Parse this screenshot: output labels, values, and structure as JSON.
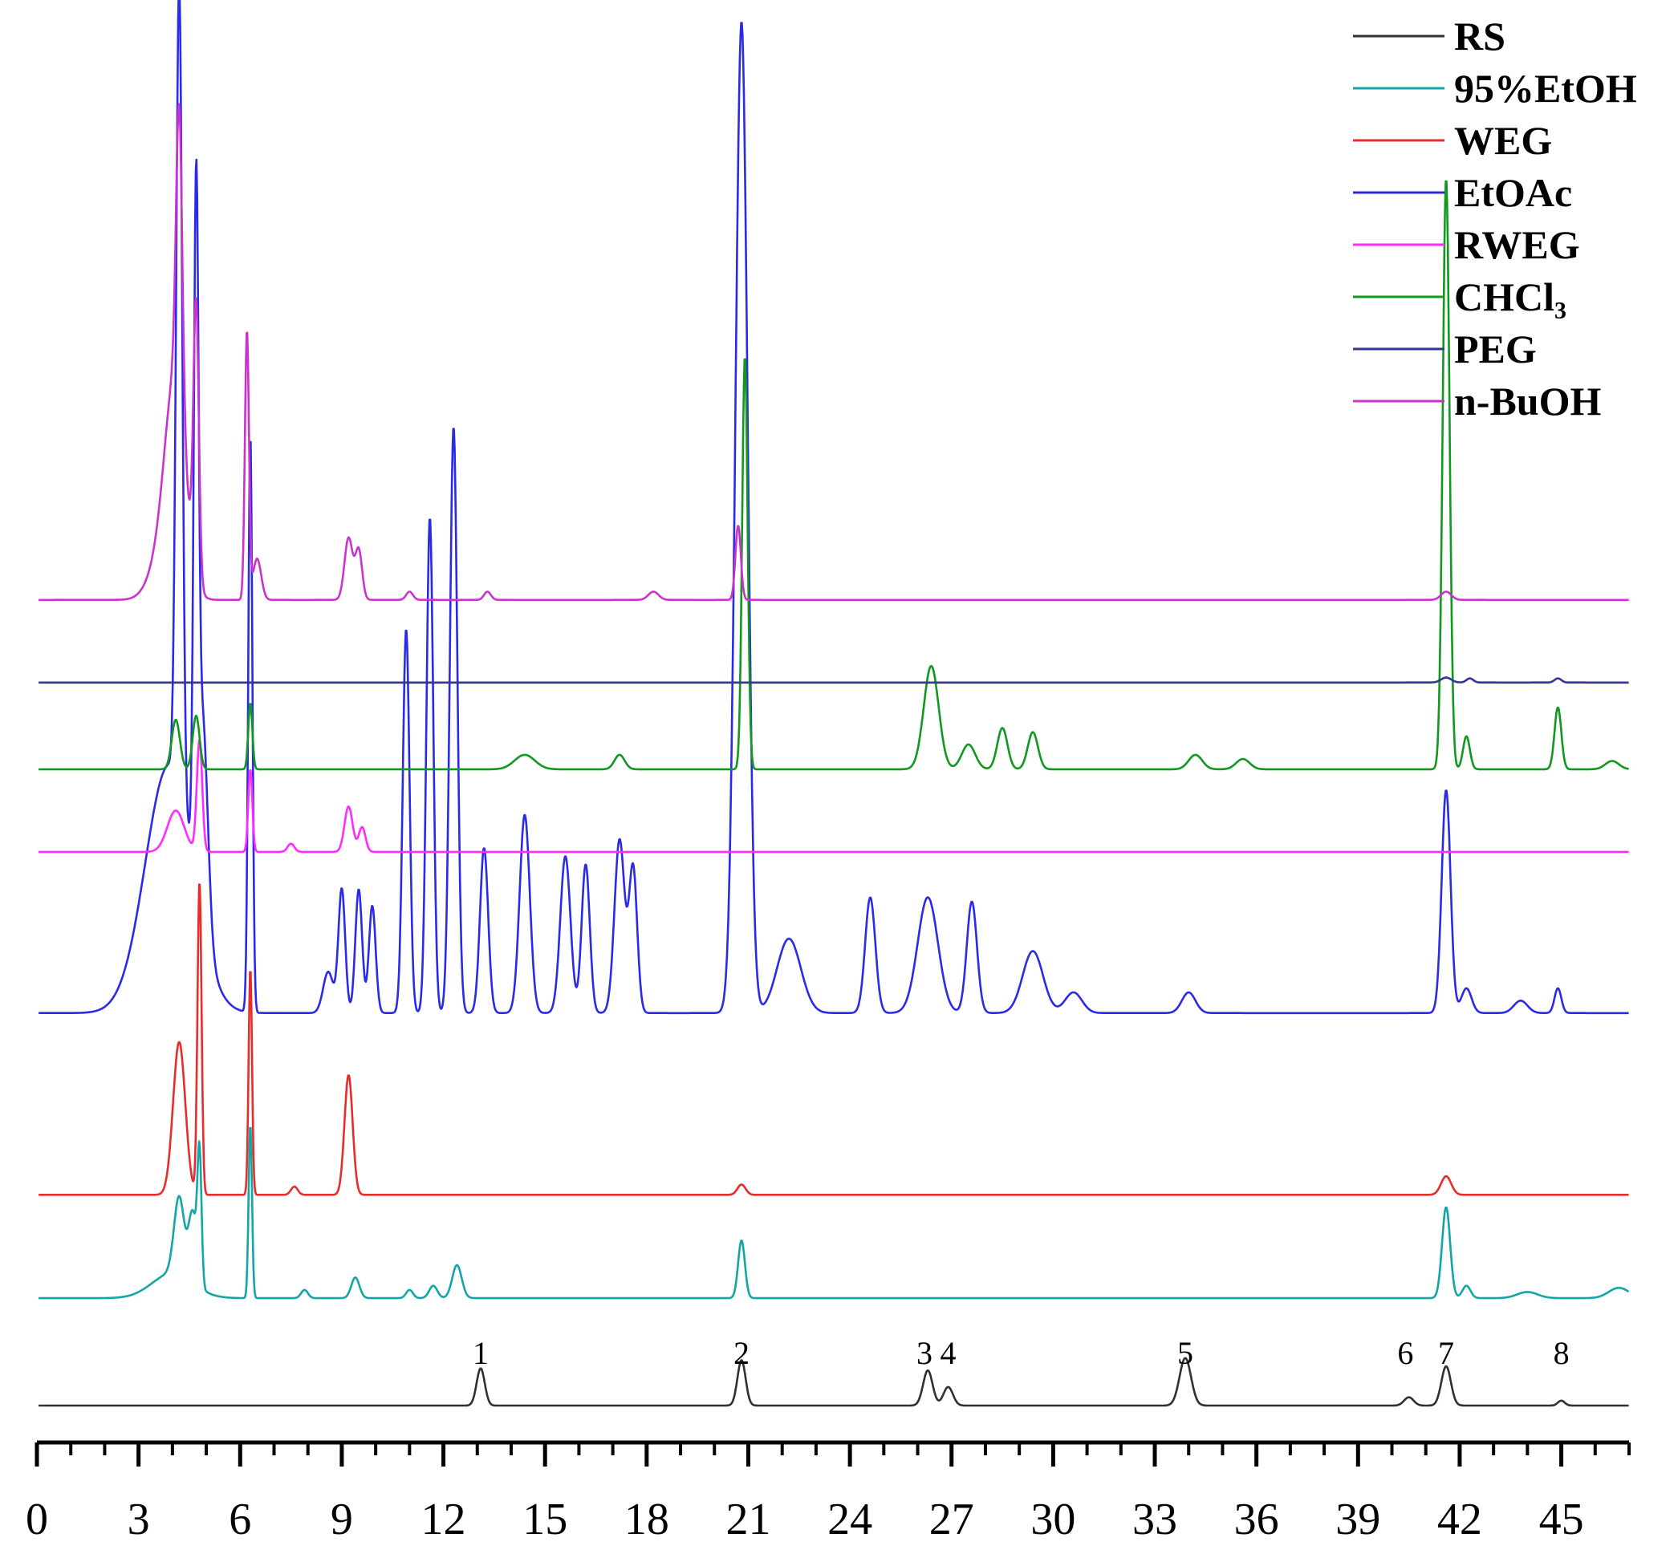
{
  "chart_data": {
    "type": "line",
    "title": "",
    "xlabel": "",
    "ylabel": "",
    "xlim": [
      0,
      47
    ],
    "grid": false,
    "legend_position": "top-right",
    "x_ticks": [
      0,
      3,
      6,
      9,
      12,
      15,
      18,
      21,
      24,
      27,
      30,
      33,
      36,
      39,
      42,
      45
    ],
    "series": [
      {
        "name": "RS",
        "color": "#303030",
        "baseline": 0,
        "peaks": [
          {
            "x": 13.1,
            "h": 0.9,
            "w": 0.12
          },
          {
            "x": 20.8,
            "h": 1.1,
            "w": 0.12
          },
          {
            "x": 26.3,
            "h": 0.85,
            "w": 0.14
          },
          {
            "x": 26.9,
            "h": 0.45,
            "w": 0.14
          },
          {
            "x": 33.9,
            "h": 1.15,
            "w": 0.17
          },
          {
            "x": 40.5,
            "h": 0.2,
            "w": 0.14
          },
          {
            "x": 41.6,
            "h": 0.95,
            "w": 0.14
          },
          {
            "x": 45.0,
            "h": 0.12,
            "w": 0.1
          }
        ]
      },
      {
        "name": "95%EtOH",
        "color": "#13a6a6",
        "baseline": 2.6,
        "peaks": [
          {
            "x": 4.0,
            "h": 0.6,
            "w": 0.6
          },
          {
            "x": 4.2,
            "h": 1.9,
            "w": 0.15
          },
          {
            "x": 4.6,
            "h": 1.7,
            "w": 0.12
          },
          {
            "x": 4.8,
            "h": 3.1,
            "w": 0.06
          },
          {
            "x": 6.3,
            "h": 4.2,
            "w": 0.05
          },
          {
            "x": 7.9,
            "h": 0.2,
            "w": 0.1
          },
          {
            "x": 9.4,
            "h": 0.5,
            "w": 0.12
          },
          {
            "x": 11.0,
            "h": 0.2,
            "w": 0.1
          },
          {
            "x": 11.7,
            "h": 0.3,
            "w": 0.12
          },
          {
            "x": 12.4,
            "h": 0.8,
            "w": 0.14
          },
          {
            "x": 20.8,
            "h": 1.4,
            "w": 0.1
          },
          {
            "x": 41.6,
            "h": 2.2,
            "w": 0.12
          },
          {
            "x": 42.2,
            "h": 0.3,
            "w": 0.12
          },
          {
            "x": 44.0,
            "h": 0.15,
            "w": 0.3
          },
          {
            "x": 46.7,
            "h": 0.25,
            "w": 0.3
          }
        ]
      },
      {
        "name": "WEG",
        "color": "#e82c2c",
        "baseline": 5.1,
        "peaks": [
          {
            "x": 4.2,
            "h": 3.7,
            "w": 0.18
          },
          {
            "x": 4.8,
            "h": 7.6,
            "w": 0.06
          },
          {
            "x": 6.3,
            "h": 5.5,
            "w": 0.05
          },
          {
            "x": 7.6,
            "h": 0.2,
            "w": 0.1
          },
          {
            "x": 9.2,
            "h": 2.9,
            "w": 0.12
          },
          {
            "x": 20.8,
            "h": 0.25,
            "w": 0.12
          },
          {
            "x": 41.6,
            "h": 0.45,
            "w": 0.15
          }
        ]
      },
      {
        "name": "EtOAc",
        "color": "#2a2ae8",
        "baseline": 9.5,
        "peaks": [
          {
            "x": 3.9,
            "h": 6.0,
            "w": 0.7
          },
          {
            "x": 4.2,
            "h": 19.5,
            "w": 0.09
          },
          {
            "x": 4.7,
            "h": 15.5,
            "w": 0.07
          },
          {
            "x": 4.9,
            "h": 5.0,
            "w": 0.15
          },
          {
            "x": 6.3,
            "h": 14.0,
            "w": 0.06
          },
          {
            "x": 8.6,
            "h": 1.0,
            "w": 0.15
          },
          {
            "x": 9.0,
            "h": 3.0,
            "w": 0.1
          },
          {
            "x": 9.5,
            "h": 3.0,
            "w": 0.1
          },
          {
            "x": 9.9,
            "h": 2.6,
            "w": 0.1
          },
          {
            "x": 10.9,
            "h": 9.3,
            "w": 0.1
          },
          {
            "x": 11.6,
            "h": 12.0,
            "w": 0.1
          },
          {
            "x": 12.3,
            "h": 14.2,
            "w": 0.11
          },
          {
            "x": 13.2,
            "h": 4.0,
            "w": 0.12
          },
          {
            "x": 14.4,
            "h": 4.8,
            "w": 0.15
          },
          {
            "x": 15.6,
            "h": 3.8,
            "w": 0.15
          },
          {
            "x": 16.2,
            "h": 3.6,
            "w": 0.12
          },
          {
            "x": 17.2,
            "h": 4.2,
            "w": 0.15
          },
          {
            "x": 17.6,
            "h": 3.5,
            "w": 0.12
          },
          {
            "x": 20.8,
            "h": 24.0,
            "w": 0.18
          },
          {
            "x": 22.2,
            "h": 1.8,
            "w": 0.35
          },
          {
            "x": 24.6,
            "h": 2.8,
            "w": 0.15
          },
          {
            "x": 26.3,
            "h": 2.8,
            "w": 0.3
          },
          {
            "x": 27.6,
            "h": 2.7,
            "w": 0.15
          },
          {
            "x": 29.4,
            "h": 1.5,
            "w": 0.3
          },
          {
            "x": 30.6,
            "h": 0.5,
            "w": 0.25
          },
          {
            "x": 34.0,
            "h": 0.5,
            "w": 0.2
          },
          {
            "x": 41.6,
            "h": 5.4,
            "w": 0.13
          },
          {
            "x": 42.2,
            "h": 0.6,
            "w": 0.15
          },
          {
            "x": 43.8,
            "h": 0.3,
            "w": 0.2
          },
          {
            "x": 44.9,
            "h": 0.6,
            "w": 0.1
          }
        ]
      },
      {
        "name": "RWEG",
        "color": "#ff2bff",
        "baseline": 13.4,
        "peaks": [
          {
            "x": 4.1,
            "h": 1.0,
            "w": 0.25
          },
          {
            "x": 4.8,
            "h": 2.7,
            "w": 0.08
          },
          {
            "x": 6.3,
            "h": 2.0,
            "w": 0.06
          },
          {
            "x": 7.5,
            "h": 0.2,
            "w": 0.1
          },
          {
            "x": 9.2,
            "h": 1.1,
            "w": 0.12
          },
          {
            "x": 9.6,
            "h": 0.6,
            "w": 0.1
          }
        ]
      },
      {
        "name": "CHCl₃",
        "color": "#11981f",
        "baseline": 15.4,
        "peaks": [
          {
            "x": 4.1,
            "h": 1.2,
            "w": 0.12
          },
          {
            "x": 4.7,
            "h": 1.3,
            "w": 0.1
          },
          {
            "x": 6.3,
            "h": 1.6,
            "w": 0.06
          },
          {
            "x": 14.4,
            "h": 0.35,
            "w": 0.3
          },
          {
            "x": 17.2,
            "h": 0.35,
            "w": 0.15
          },
          {
            "x": 20.9,
            "h": 10.0,
            "w": 0.08
          },
          {
            "x": 26.4,
            "h": 2.5,
            "w": 0.22
          },
          {
            "x": 27.5,
            "h": 0.6,
            "w": 0.2
          },
          {
            "x": 28.5,
            "h": 1.0,
            "w": 0.15
          },
          {
            "x": 29.4,
            "h": 0.9,
            "w": 0.15
          },
          {
            "x": 34.2,
            "h": 0.35,
            "w": 0.2
          },
          {
            "x": 35.6,
            "h": 0.25,
            "w": 0.2
          },
          {
            "x": 41.6,
            "h": 14.3,
            "w": 0.1
          },
          {
            "x": 42.2,
            "h": 0.8,
            "w": 0.1
          },
          {
            "x": 44.9,
            "h": 1.5,
            "w": 0.1
          },
          {
            "x": 46.5,
            "h": 0.2,
            "w": 0.2
          }
        ]
      },
      {
        "name": "PEG",
        "color": "#353597",
        "baseline": 17.5,
        "peaks": [
          {
            "x": 41.6,
            "h": 0.12,
            "w": 0.15
          },
          {
            "x": 42.3,
            "h": 0.1,
            "w": 0.1
          },
          {
            "x": 44.9,
            "h": 0.1,
            "w": 0.1
          }
        ]
      },
      {
        "name": "n-BuOH",
        "color": "#cc33cc",
        "baseline": 19.5,
        "peaks": [
          {
            "x": 3.8,
            "h": 1.2,
            "w": 0.4
          },
          {
            "x": 4.1,
            "h": 4.5,
            "w": 0.3
          },
          {
            "x": 4.2,
            "h": 7.0,
            "w": 0.09
          },
          {
            "x": 4.7,
            "h": 6.6,
            "w": 0.08
          },
          {
            "x": 6.2,
            "h": 6.5,
            "w": 0.06
          },
          {
            "x": 6.5,
            "h": 1.0,
            "w": 0.12
          },
          {
            "x": 9.2,
            "h": 1.5,
            "w": 0.12
          },
          {
            "x": 9.5,
            "h": 1.2,
            "w": 0.1
          },
          {
            "x": 11.0,
            "h": 0.2,
            "w": 0.1
          },
          {
            "x": 13.3,
            "h": 0.2,
            "w": 0.1
          },
          {
            "x": 18.2,
            "h": 0.2,
            "w": 0.15
          },
          {
            "x": 20.7,
            "h": 1.8,
            "w": 0.08
          },
          {
            "x": 41.6,
            "h": 0.2,
            "w": 0.15
          }
        ]
      }
    ],
    "peak_labels": [
      {
        "label": "1",
        "x": 13.1
      },
      {
        "label": "2",
        "x": 20.8
      },
      {
        "label": "3",
        "x": 26.2
      },
      {
        "label": "4",
        "x": 26.9
      },
      {
        "label": "5",
        "x": 33.9
      },
      {
        "label": "6",
        "x": 40.4
      },
      {
        "label": "7",
        "x": 41.6
      },
      {
        "label": "8",
        "x": 45.0
      }
    ]
  }
}
